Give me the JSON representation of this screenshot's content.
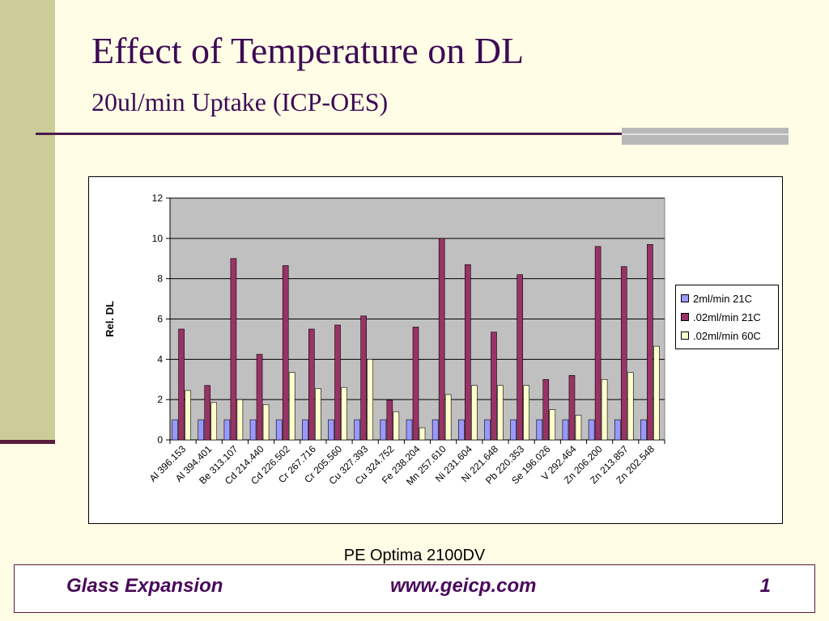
{
  "slide": {
    "title": "Effect of Temperature on DL",
    "subtitle": "20ul/min Uptake (ICP-OES)",
    "caption": "PE Optima 2100DV"
  },
  "footer": {
    "left": "Glass Expansion",
    "middle": "www.geicp.com",
    "right": "1"
  },
  "colors": {
    "plot_bg": "#C0C0C0",
    "series": [
      "#9999FF",
      "#993366",
      "#FFFFCC"
    ]
  },
  "chart_data": {
    "type": "bar",
    "title": "",
    "xlabel": "",
    "ylabel": "Rel. DL",
    "ylim": [
      0,
      12
    ],
    "yticks": [
      0,
      2,
      4,
      6,
      8,
      10,
      12
    ],
    "grid": true,
    "legend": "right",
    "categories": [
      "Al 396.153",
      "Al 394.401",
      "Be 313.107",
      "Cd 214.440",
      "Cd 226.502",
      "Cr 267.716",
      "Cr 205.560",
      "Cu 327.393",
      "Cu 324.752",
      "Fe 238.204",
      "Mn 257.610",
      "Ni 231.604",
      "Ni 221.648",
      "Pb 220.353",
      "Se 196.026",
      "V 292.464",
      "Zn 206.200",
      "Zn 213.857",
      "Zn 202.548"
    ],
    "series": [
      {
        "name": "2ml/min 21C",
        "values": [
          1,
          1,
          1,
          1,
          1,
          1,
          1,
          1,
          1,
          1,
          1,
          1,
          1,
          1,
          1,
          1,
          1,
          1,
          1
        ]
      },
      {
        "name": ".02ml/min 21C",
        "values": [
          5.5,
          2.7,
          9.0,
          4.25,
          8.65,
          5.5,
          5.7,
          6.15,
          1.97,
          5.6,
          10.0,
          8.7,
          5.35,
          8.2,
          3.0,
          3.2,
          9.6,
          8.6,
          9.7
        ]
      },
      {
        "name": ".02ml/min 60C",
        "values": [
          2.45,
          1.85,
          2.0,
          1.75,
          3.35,
          2.55,
          2.6,
          4.0,
          1.4,
          0.6,
          2.25,
          2.7,
          2.7,
          2.7,
          1.5,
          1.22,
          3.0,
          3.35,
          4.65
        ]
      }
    ]
  }
}
